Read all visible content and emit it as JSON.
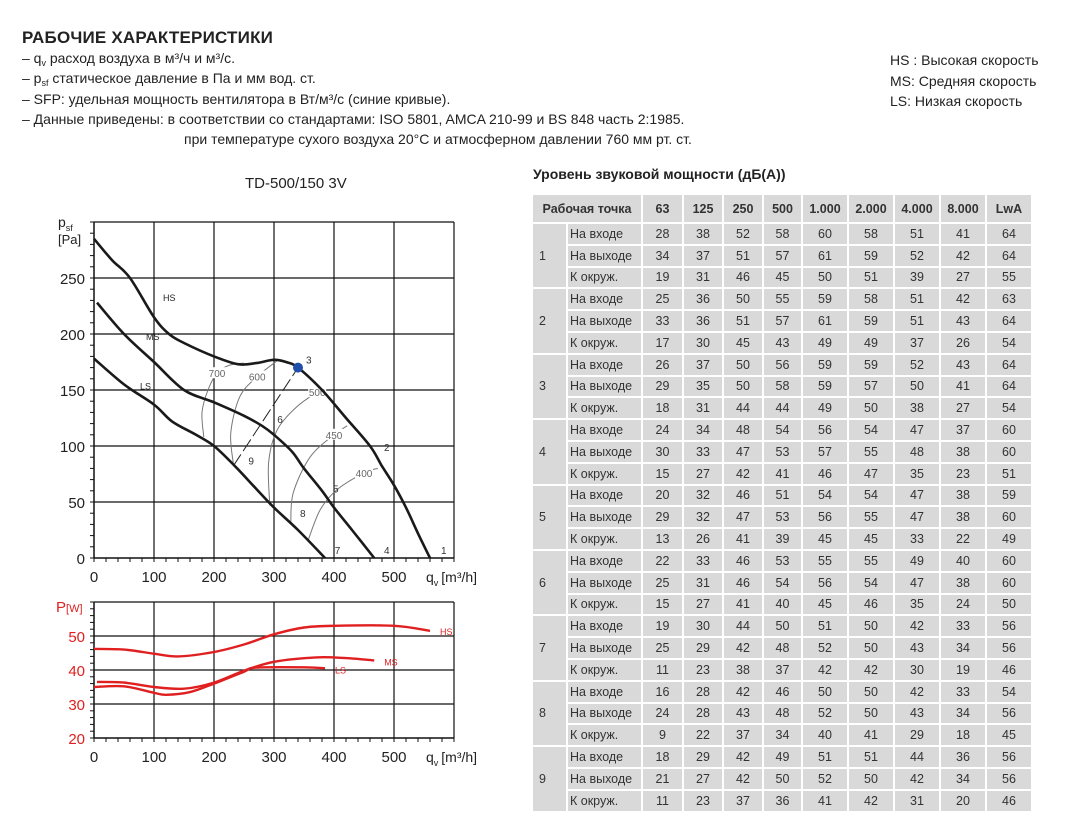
{
  "header": {
    "title": "РАБОЧИЕ ХАРАКТЕРИСТИКИ",
    "lines": [
      {
        "prefix": "– q",
        "sub": "v",
        "text": " расход воздуха в м³/ч и м³/с."
      },
      {
        "prefix": "– p",
        "sub": "sf",
        "text": "  статическое давление в Па и мм вод. ст."
      },
      {
        "prefix": "– SFP: удельная мощность вентилятора в Вт/м³/с (синие кривые).",
        "sub": "",
        "text": ""
      },
      {
        "prefix": "– Данные приведены: в соответствии со стандартами: ISO 5801, AMCA 210-99 и BS 848 часть 2:1985.",
        "sub": "",
        "text": ""
      },
      {
        "prefix": "при температуре сухого воздуха 20°C и атмосферном давлении 760 мм рт. ст.",
        "sub": "",
        "text": ""
      }
    ],
    "legend": [
      "HS : Высокая скорость",
      "MS: Средняя скорость",
      "LS: Низкая скорость"
    ]
  },
  "chart_data": [
    {
      "type": "line",
      "title": "TD-500/150 3V",
      "ylabel": {
        "main": "p",
        "sub": "sf",
        "unit": "[Pa]"
      },
      "xlabel": {
        "main": "q",
        "sub": "v",
        "unit": "[m³/h]"
      },
      "xlim": [
        0,
        600
      ],
      "ylim": [
        0,
        300
      ],
      "xticks": [
        "0",
        "100",
        "200",
        "300",
        "400",
        "500"
      ],
      "yticks": [
        "0",
        "50",
        "100",
        "150",
        "200",
        "250"
      ],
      "grid": true,
      "curve_color": "#1a1a1a",
      "series": [
        {
          "name": "HS",
          "points": [
            [
              0,
              285
            ],
            [
              30,
              266
            ],
            [
              60,
              250
            ],
            [
              100,
              215
            ],
            [
              125,
              200
            ],
            [
              150,
              192
            ],
            [
              200,
              180
            ],
            [
              240,
              173
            ],
            [
              270,
              174
            ],
            [
              300,
              177
            ],
            [
              320,
              175
            ],
            [
              340,
              170
            ],
            [
              380,
              150
            ],
            [
              420,
              125
            ],
            [
              460,
              100
            ],
            [
              480,
              82
            ],
            [
              500,
              65
            ],
            [
              520,
              45
            ],
            [
              540,
              22
            ],
            [
              560,
              0
            ]
          ]
        },
        {
          "name": "MS",
          "points": [
            [
              5,
              228
            ],
            [
              50,
              200
            ],
            [
              100,
              175
            ],
            [
              150,
              150
            ],
            [
              200,
              139
            ],
            [
              250,
              127
            ],
            [
              280,
              118
            ],
            [
              300,
              110
            ],
            [
              330,
              95
            ],
            [
              350,
              80
            ],
            [
              380,
              60
            ],
            [
              400,
              45
            ],
            [
              430,
              25
            ],
            [
              467,
              0
            ]
          ]
        },
        {
          "name": "LS",
          "points": [
            [
              0,
              178
            ],
            [
              50,
              155
            ],
            [
              100,
              137
            ],
            [
              130,
              122
            ],
            [
              170,
              110
            ],
            [
              200,
              100
            ],
            [
              235,
              82
            ],
            [
              270,
              62
            ],
            [
              300,
              45
            ],
            [
              340,
              25
            ],
            [
              385,
              0
            ]
          ]
        }
      ],
      "speed_curves": [
        {
          "label": "700",
          "label_at": 3,
          "points": [
            [
              183,
              108
            ],
            [
              180,
              130
            ],
            [
              190,
              150
            ],
            [
              205,
              165
            ],
            [
              225,
              172
            ],
            [
              250,
              174
            ]
          ]
        },
        {
          "label": "600",
          "label_at": 3,
          "points": [
            [
              232,
              85
            ],
            [
              228,
              112
            ],
            [
              243,
              144
            ],
            [
              272,
              162
            ],
            [
              305,
              176
            ]
          ]
        },
        {
          "label": "500",
          "label_at": 4,
          "points": [
            [
              293,
              47
            ],
            [
              291,
              85
            ],
            [
              305,
              114
            ],
            [
              338,
              135
            ],
            [
              372,
              148
            ],
            [
              385,
              152
            ]
          ]
        },
        {
          "label": "450",
          "label_at": 3,
          "points": [
            [
              328,
              31
            ],
            [
              332,
              58
            ],
            [
              360,
              90
            ],
            [
              400,
              110
            ],
            [
              422,
              118
            ]
          ]
        },
        {
          "label": "400",
          "label_at": 3,
          "points": [
            [
              357,
              16
            ],
            [
              377,
              43
            ],
            [
              405,
              61
            ],
            [
              450,
              76
            ],
            [
              473,
              80
            ]
          ]
        }
      ],
      "system_line": [
        [
          232,
          82
        ],
        [
          340,
          170
        ]
      ],
      "selected_point": {
        "label": "3",
        "x": 340,
        "y": 170,
        "color": "#1f4fa8"
      },
      "operating_points": [
        {
          "label": "1",
          "x": 565,
          "y": 0
        },
        {
          "label": "2",
          "x": 470,
          "y": 92
        },
        {
          "label": "3",
          "x": 340,
          "y": 170
        },
        {
          "label": "4",
          "x": 470,
          "y": 0
        },
        {
          "label": "5",
          "x": 385,
          "y": 55
        },
        {
          "label": "6",
          "x": 292,
          "y": 117
        },
        {
          "label": "7",
          "x": 388,
          "y": 0
        },
        {
          "label": "8",
          "x": 330,
          "y": 33
        },
        {
          "label": "9",
          "x": 244,
          "y": 80
        }
      ]
    },
    {
      "type": "line",
      "ylabel": {
        "main": "P",
        "unit": "[W]"
      },
      "xlabel": {
        "main": "q",
        "sub": "v",
        "unit": "[m³/h]"
      },
      "xlim": [
        0,
        600
      ],
      "ylim": [
        20,
        60
      ],
      "xticks": [
        "0",
        "100",
        "200",
        "300",
        "400",
        "500"
      ],
      "yticks": [
        "20",
        "30",
        "40",
        "50"
      ],
      "grid": true,
      "curve_color": "#e02020",
      "series": [
        {
          "name": "HS",
          "points": [
            [
              0,
              46.2
            ],
            [
              50,
              46
            ],
            [
              100,
              44.8
            ],
            [
              140,
              44
            ],
            [
              200,
              45.3
            ],
            [
              250,
              47.5
            ],
            [
              300,
              50.5
            ],
            [
              350,
              52.5
            ],
            [
              400,
              53
            ],
            [
              500,
              53
            ],
            [
              560,
              51.5
            ]
          ]
        },
        {
          "name": "MS",
          "points": [
            [
              5,
              36.5
            ],
            [
              50,
              36.3
            ],
            [
              100,
              35
            ],
            [
              150,
              34.5
            ],
            [
              200,
              36.3
            ],
            [
              250,
              39.8
            ],
            [
              300,
              42.4
            ],
            [
              370,
              43.7
            ],
            [
              420,
              43.5
            ],
            [
              467,
              42.8
            ]
          ]
        },
        {
          "name": "LS",
          "points": [
            [
              0,
              35
            ],
            [
              50,
              35.2
            ],
            [
              100,
              33.3
            ],
            [
              120,
              32.7
            ],
            [
              160,
              33.5
            ],
            [
              200,
              36
            ],
            [
              250,
              39.5
            ],
            [
              270,
              40.7
            ],
            [
              350,
              40.8
            ],
            [
              385,
              40.5
            ]
          ]
        }
      ]
    }
  ],
  "sound": {
    "title": "Уровень звуковой мощности (дБ(A))",
    "headers": [
      "Рабочая точка",
      "63",
      "125",
      "250",
      "500",
      "1.000",
      "2.000",
      "4.000",
      "8.000",
      "LwA"
    ],
    "points": [
      {
        "id": "1",
        "rows": [
          {
            "label": "На входе",
            "values": [
              "28",
              "38",
              "52",
              "58",
              "60",
              "58",
              "51",
              "41",
              "64"
            ]
          },
          {
            "label": "На выходе",
            "values": [
              "34",
              "37",
              "51",
              "57",
              "61",
              "59",
              "52",
              "42",
              "64"
            ]
          },
          {
            "label": "К окруж.",
            "values": [
              "19",
              "31",
              "46",
              "45",
              "50",
              "51",
              "39",
              "27",
              "55"
            ]
          }
        ]
      },
      {
        "id": "2",
        "rows": [
          {
            "label": "На входе",
            "values": [
              "25",
              "36",
              "50",
              "55",
              "59",
              "58",
              "51",
              "42",
              "63"
            ]
          },
          {
            "label": "На выходе",
            "values": [
              "33",
              "36",
              "51",
              "57",
              "61",
              "59",
              "51",
              "43",
              "64"
            ]
          },
          {
            "label": "К окруж.",
            "values": [
              "17",
              "30",
              "45",
              "43",
              "49",
              "49",
              "37",
              "26",
              "54"
            ]
          }
        ]
      },
      {
        "id": "3",
        "rows": [
          {
            "label": "На входе",
            "values": [
              "26",
              "37",
              "50",
              "56",
              "59",
              "59",
              "52",
              "43",
              "64"
            ]
          },
          {
            "label": "На выходе",
            "values": [
              "29",
              "35",
              "50",
              "58",
              "59",
              "57",
              "50",
              "41",
              "64"
            ]
          },
          {
            "label": "К окруж.",
            "values": [
              "18",
              "31",
              "44",
              "44",
              "49",
              "50",
              "38",
              "27",
              "54"
            ]
          }
        ]
      },
      {
        "id": "4",
        "rows": [
          {
            "label": "На входе",
            "values": [
              "24",
              "34",
              "48",
              "54",
              "56",
              "54",
              "47",
              "37",
              "60"
            ]
          },
          {
            "label": "На выходе",
            "values": [
              "30",
              "33",
              "47",
              "53",
              "57",
              "55",
              "48",
              "38",
              "60"
            ]
          },
          {
            "label": "К окруж.",
            "values": [
              "15",
              "27",
              "42",
              "41",
              "46",
              "47",
              "35",
              "23",
              "51"
            ]
          }
        ]
      },
      {
        "id": "5",
        "rows": [
          {
            "label": "На входе",
            "values": [
              "20",
              "32",
              "46",
              "51",
              "54",
              "54",
              "47",
              "38",
              "59"
            ]
          },
          {
            "label": "На выходе",
            "values": [
              "29",
              "32",
              "47",
              "53",
              "56",
              "55",
              "47",
              "38",
              "60"
            ]
          },
          {
            "label": "К окруж.",
            "values": [
              "13",
              "26",
              "41",
              "39",
              "45",
              "45",
              "33",
              "22",
              "49"
            ]
          }
        ]
      },
      {
        "id": "6",
        "rows": [
          {
            "label": "На входе",
            "values": [
              "22",
              "33",
              "46",
              "53",
              "55",
              "55",
              "49",
              "40",
              "60"
            ]
          },
          {
            "label": "На выходе",
            "values": [
              "25",
              "31",
              "46",
              "54",
              "56",
              "54",
              "47",
              "38",
              "60"
            ]
          },
          {
            "label": "К окруж.",
            "values": [
              "15",
              "27",
              "41",
              "40",
              "45",
              "46",
              "35",
              "24",
              "50"
            ]
          }
        ]
      },
      {
        "id": "7",
        "rows": [
          {
            "label": "На входе",
            "values": [
              "19",
              "30",
              "44",
              "50",
              "51",
              "50",
              "42",
              "33",
              "56"
            ]
          },
          {
            "label": "На выходе",
            "values": [
              "25",
              "29",
              "42",
              "48",
              "52",
              "50",
              "43",
              "34",
              "56"
            ]
          },
          {
            "label": "К окруж.",
            "values": [
              "11",
              "23",
              "38",
              "37",
              "42",
              "42",
              "30",
              "19",
              "46"
            ]
          }
        ]
      },
      {
        "id": "8",
        "rows": [
          {
            "label": "На входе",
            "values": [
              "16",
              "28",
              "42",
              "46",
              "50",
              "50",
              "42",
              "33",
              "54"
            ]
          },
          {
            "label": "На выходе",
            "values": [
              "24",
              "28",
              "43",
              "48",
              "52",
              "50",
              "43",
              "34",
              "56"
            ]
          },
          {
            "label": "К окруж.",
            "values": [
              "9",
              "22",
              "37",
              "34",
              "40",
              "41",
              "29",
              "18",
              "45"
            ]
          }
        ]
      },
      {
        "id": "9",
        "rows": [
          {
            "label": "На входе",
            "values": [
              "18",
              "29",
              "42",
              "49",
              "51",
              "51",
              "44",
              "36",
              "56"
            ]
          },
          {
            "label": "На выходе",
            "values": [
              "21",
              "27",
              "42",
              "50",
              "52",
              "50",
              "42",
              "34",
              "56"
            ]
          },
          {
            "label": "К окруж.",
            "values": [
              "11",
              "23",
              "37",
              "36",
              "41",
              "42",
              "31",
              "20",
              "46"
            ]
          }
        ]
      }
    ]
  }
}
